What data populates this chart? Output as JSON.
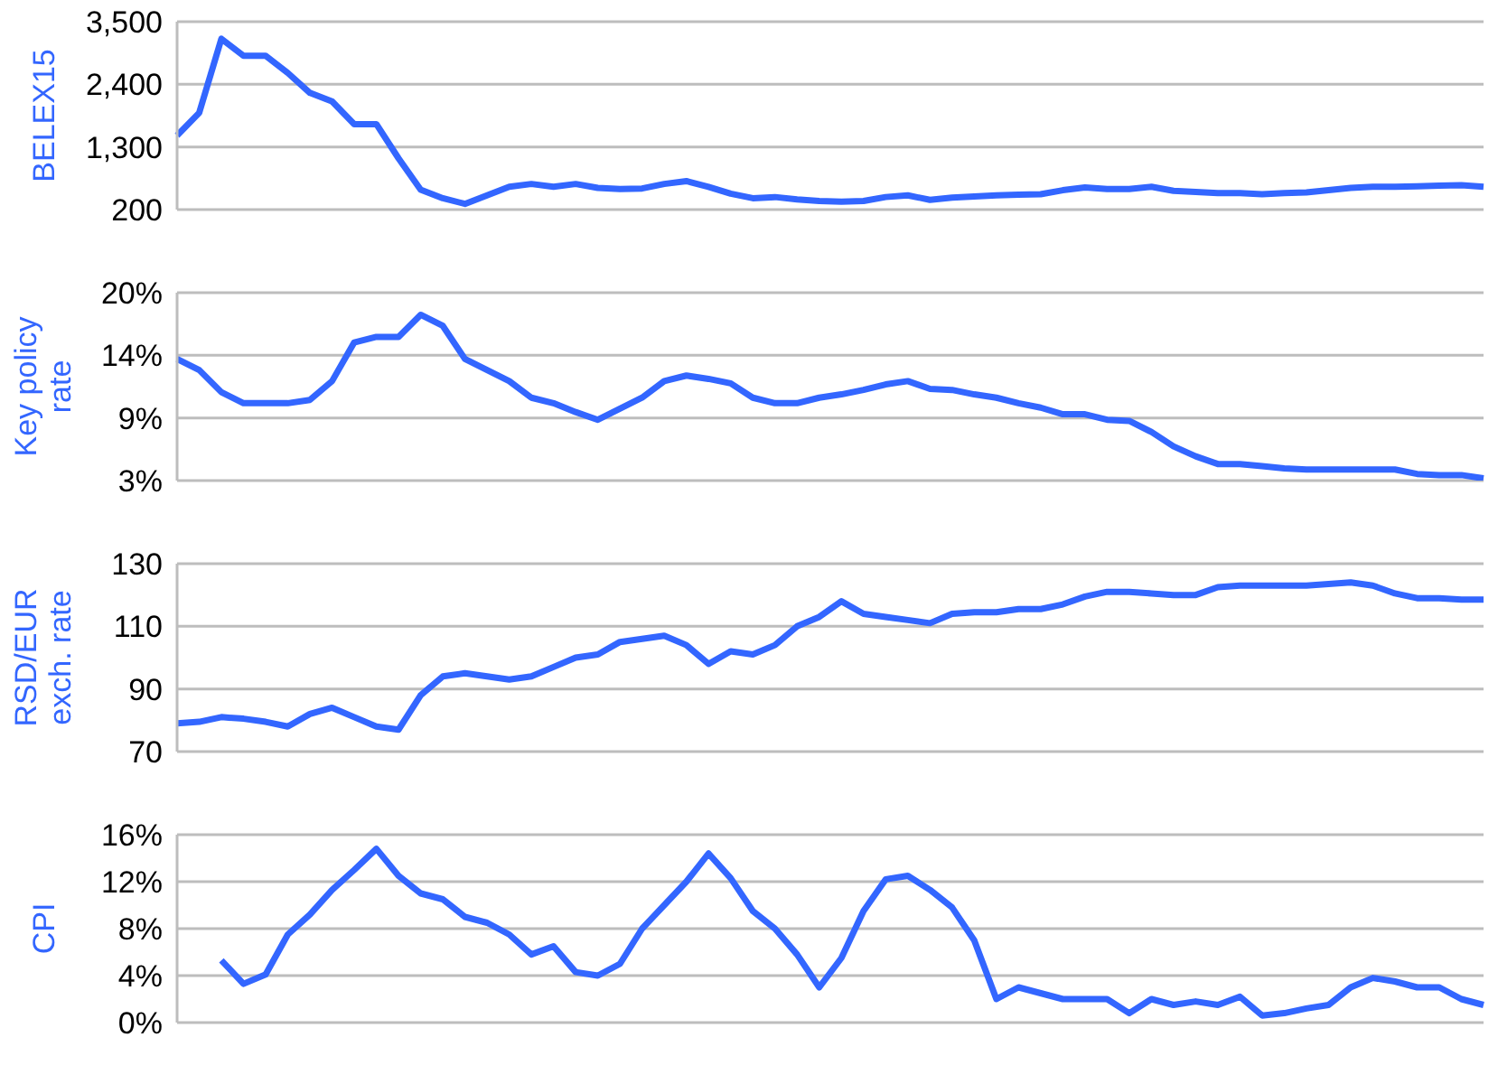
{
  "chart_data": [
    {
      "type": "line",
      "ylabel": "BELEX15",
      "color": "#3366ff",
      "grid": "y",
      "tick_labels": "y",
      "categories": [
        null,
        null,
        null,
        null,
        null,
        null,
        null,
        null,
        null,
        null,
        null,
        null,
        null,
        null,
        null,
        null,
        null,
        null,
        null,
        null,
        null,
        null,
        null,
        null,
        null,
        null,
        null,
        null,
        null,
        null,
        null,
        null,
        null,
        null,
        null,
        null,
        null,
        null,
        null,
        null,
        null,
        null,
        null,
        null,
        null,
        null,
        null,
        null,
        null,
        null,
        null,
        null,
        null,
        null,
        null,
        null,
        null,
        null,
        null,
        null
      ],
      "ylim": [
        200,
        3500
      ],
      "yticks": [
        {
          "value": 200,
          "label": "200"
        },
        {
          "value": 1300,
          "label": "1,300"
        },
        {
          "value": 2400,
          "label": "2,400"
        },
        {
          "value": 3500,
          "label": "3,500"
        }
      ],
      "values": [
        1500,
        1900,
        3200,
        2900,
        2900,
        2600,
        2250,
        2100,
        1700,
        1700,
        1100,
        550,
        400,
        300,
        450,
        600,
        650,
        600,
        650,
        580,
        560,
        570,
        650,
        700,
        600,
        480,
        400,
        420,
        380,
        350,
        340,
        350,
        420,
        450,
        370,
        410,
        430,
        450,
        460,
        470,
        540,
        590,
        560,
        560,
        600,
        530,
        510,
        490,
        490,
        470,
        490,
        500,
        540,
        580,
        600,
        600,
        610,
        620,
        630,
        600
      ]
    },
    {
      "type": "line",
      "ylabel": "Key policy rate",
      "color": "#3366ff",
      "grid": "y",
      "tick_labels": "y",
      "categories": [
        null,
        null,
        null,
        null,
        null,
        null,
        null,
        null,
        null,
        null,
        null,
        null,
        null,
        null,
        null,
        null,
        null,
        null,
        null,
        null,
        null,
        null,
        null,
        null,
        null,
        null,
        null,
        null,
        null,
        null,
        null,
        null,
        null,
        null,
        null,
        null,
        null,
        null,
        null,
        null,
        null,
        null,
        null,
        null,
        null,
        null,
        null,
        null,
        null,
        null,
        null,
        null,
        null,
        null,
        null,
        null,
        null,
        null,
        null,
        null
      ],
      "ylim": [
        3,
        20
      ],
      "yticks": [
        {
          "value": 3,
          "label": "3%"
        },
        {
          "value": 8.667,
          "label": "9%"
        },
        {
          "value": 14.333,
          "label": "14%"
        },
        {
          "value": 20,
          "label": "20%"
        }
      ],
      "values": [
        14,
        13,
        11,
        10,
        10,
        10,
        10.3,
        12,
        15.5,
        16,
        16,
        18,
        17,
        14,
        13,
        12,
        10.5,
        10,
        9.2,
        8.5,
        9.5,
        10.5,
        12,
        12.5,
        12.2,
        11.8,
        10.5,
        10,
        10,
        10.5,
        10.8,
        11.2,
        11.7,
        12,
        11.3,
        11.2,
        10.8,
        10.5,
        10,
        9.6,
        9,
        9,
        8.5,
        8.4,
        7.4,
        6.1,
        5.2,
        4.5,
        4.5,
        4.3,
        4.1,
        4,
        4,
        4,
        4,
        4,
        3.6,
        3.5,
        3.5,
        3.2
      ]
    },
    {
      "type": "line",
      "ylabel": "RSD/EUR exch. rate",
      "color": "#3366ff",
      "grid": "y",
      "tick_labels": "y",
      "categories": [
        null,
        null,
        null,
        null,
        null,
        null,
        null,
        null,
        null,
        null,
        null,
        null,
        null,
        null,
        null,
        null,
        null,
        null,
        null,
        null,
        null,
        null,
        null,
        null,
        null,
        null,
        null,
        null,
        null,
        null,
        null,
        null,
        null,
        null,
        null,
        null,
        null,
        null,
        null,
        null,
        null,
        null,
        null,
        null,
        null,
        null,
        null,
        null,
        null,
        null,
        null,
        null,
        null,
        null,
        null,
        null,
        null,
        null,
        null,
        null
      ],
      "ylim": [
        70,
        130
      ],
      "yticks": [
        70,
        90,
        110,
        130
      ],
      "values": [
        79,
        79.5,
        81,
        80.5,
        79.5,
        78,
        82,
        84,
        81,
        78,
        77,
        88,
        94,
        95,
        94,
        93,
        94,
        97,
        100,
        101,
        105,
        106,
        107,
        104,
        98,
        102,
        101,
        104,
        110,
        113,
        118,
        114,
        113,
        112,
        111,
        114,
        114.5,
        114.5,
        115.5,
        115.5,
        117,
        119.5,
        121,
        121,
        120.5,
        120,
        120,
        122.5,
        123,
        123,
        123,
        123,
        123.5,
        124,
        123,
        120.5,
        119,
        119,
        118.5,
        118.5
      ]
    },
    {
      "type": "line",
      "ylabel": "CPI",
      "color": "#3366ff",
      "grid": "y",
      "tick_labels": "y",
      "categories": [
        null,
        null,
        null,
        null,
        null,
        null,
        null,
        null,
        null,
        null,
        null,
        null,
        null,
        null,
        null,
        null,
        null,
        null,
        null,
        null,
        null,
        null,
        null,
        null,
        null,
        null,
        null,
        null,
        null,
        null,
        null,
        null,
        null,
        null,
        null,
        null,
        null,
        null,
        null,
        null,
        null,
        null,
        null,
        null,
        null,
        null,
        null,
        null,
        null,
        null,
        null,
        null,
        null,
        null,
        null,
        null,
        null,
        null,
        null,
        null
      ],
      "ylim": [
        0,
        16
      ],
      "yticks": [
        {
          "value": 0,
          "label": "0%"
        },
        {
          "value": 4,
          "label": "4%"
        },
        {
          "value": 8,
          "label": "8%"
        },
        {
          "value": 12,
          "label": "12%"
        },
        {
          "value": 16,
          "label": "16%"
        }
      ],
      "values": [
        null,
        null,
        5.3,
        3.3,
        4.1,
        7.5,
        9.2,
        11.3,
        13,
        14.8,
        12.5,
        11,
        10.5,
        9,
        8.5,
        7.5,
        5.8,
        6.5,
        4.3,
        4,
        5,
        8,
        10,
        12,
        14.4,
        12.3,
        9.5,
        8,
        5.8,
        3,
        5.5,
        9.5,
        12.2,
        12.5,
        11.3,
        9.8,
        7,
        2,
        3,
        2.5,
        2,
        2,
        2,
        0.8,
        2,
        1.5,
        1.8,
        1.5,
        2.2,
        0.6,
        0.8,
        1.2,
        1.5,
        3,
        3.8,
        3.5,
        3,
        3,
        2,
        1.5
      ]
    }
  ]
}
